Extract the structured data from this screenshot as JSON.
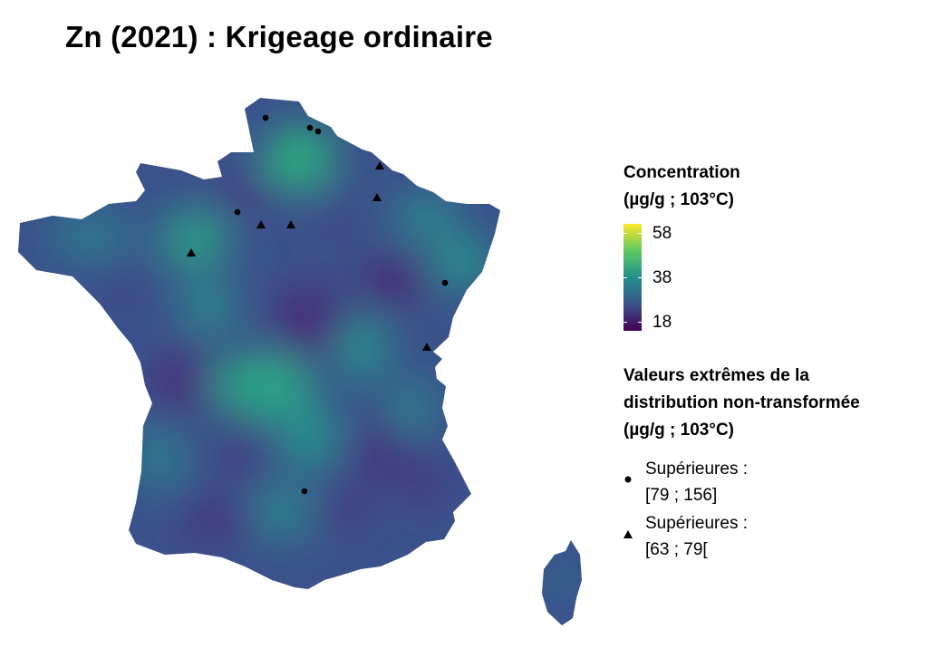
{
  "title": "Zn (2021) : Krigeage ordinaire",
  "legend": {
    "concentration_title": [
      "Concentration",
      "(µg/g ; 103°C)"
    ],
    "colorbar": {
      "ticks": [
        "58",
        "38",
        "18"
      ],
      "min": 18,
      "max": 58,
      "palette": "viridis",
      "colors": [
        "#440154",
        "#3b528b",
        "#21918c",
        "#5ec962",
        "#fde725"
      ]
    },
    "extremes_title": [
      "Valeurs extrêmes de la",
      "distribution non-transformée",
      "(µg/g ; 103°C)"
    ],
    "extremes": [
      {
        "symbol": "circle-icon",
        "label": "Supérieures :",
        "range": "[79 ; 156]"
      },
      {
        "symbol": "triangle-icon",
        "label": "Supérieures :",
        "range": "[63 ; 79["
      }
    ]
  }
}
